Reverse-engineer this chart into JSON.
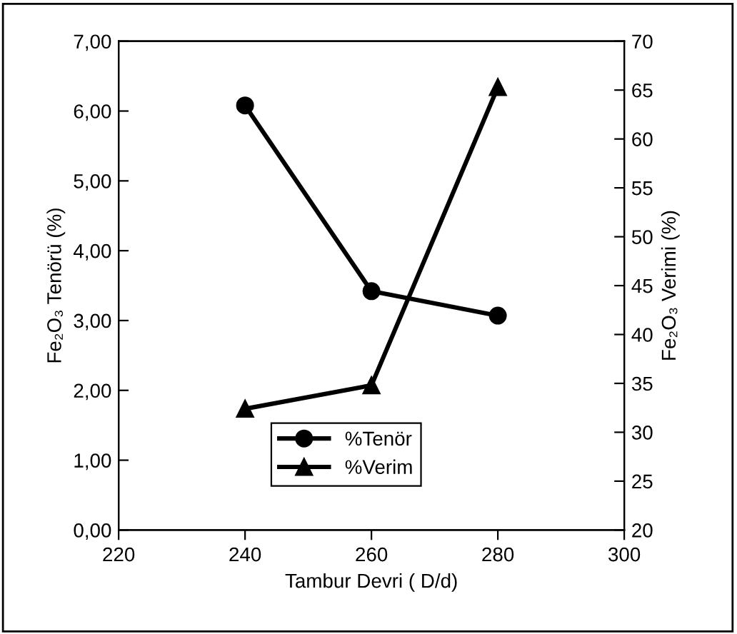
{
  "chart_data": {
    "type": "line",
    "xlabel": "Tambur Devri ( D/d)",
    "ylabel": "Fe₂O₃ Tenörü (%)",
    "y2label": "Fe₂O₃ Verimi (%)",
    "x": [
      240,
      260,
      280
    ],
    "series": [
      {
        "name": "%Tenör",
        "color": "#000000",
        "marker": "circle",
        "values": [
          6.08,
          3.42,
          3.07
        ]
      },
      {
        "name": "%Verim",
        "color": "#000000",
        "marker": "triangle",
        "axis": "y2",
        "values": [
          32.4,
          34.8,
          65.3
        ]
      }
    ],
    "xlim": [
      220,
      300
    ],
    "xticks": [
      220,
      240,
      260,
      280,
      300
    ],
    "ylim": [
      0,
      7
    ],
    "yticks": [
      {
        "value": 0,
        "label": "0,00"
      },
      {
        "value": 1,
        "label": "1,00"
      },
      {
        "value": 2,
        "label": "2,00"
      },
      {
        "value": 3,
        "label": "3,00"
      },
      {
        "value": 4,
        "label": "4,00"
      },
      {
        "value": 5,
        "label": "5,00"
      },
      {
        "value": 6,
        "label": "6,00"
      },
      {
        "value": 7,
        "label": "7,00"
      }
    ],
    "y2lim": [
      20,
      70
    ],
    "y2ticks": [
      20,
      25,
      30,
      35,
      40,
      45,
      50,
      55,
      60,
      65,
      70
    ],
    "legend": "bottom",
    "grid": false,
    "line_style": "solid"
  }
}
